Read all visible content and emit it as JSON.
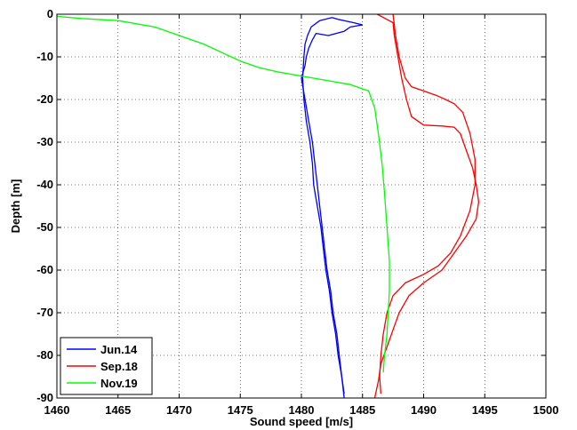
{
  "chart_data": {
    "type": "line",
    "title": "",
    "xlabel": "Sound speed [m/s]",
    "ylabel": "Depth [m]",
    "xlim": [
      1460,
      1500
    ],
    "ylim": [
      -90,
      0
    ],
    "xticks": [
      1460,
      1465,
      1470,
      1475,
      1480,
      1485,
      1490,
      1495,
      1500
    ],
    "yticks": [
      0,
      -10,
      -20,
      -30,
      -40,
      -50,
      -60,
      -70,
      -80,
      -90
    ],
    "grid": true,
    "grid_style": "dotted",
    "legend_position": "bottom-left",
    "series": [
      {
        "name": "Jun.14",
        "color": "#0000ff",
        "x": [
          1485.0,
          1484.3,
          1483.0,
          1482.5,
          1481.5,
          1480.8,
          1480.5,
          1480.3,
          1480.2,
          1480.1,
          1480.2,
          1480.4,
          1480.7,
          1480.9,
          1481.0,
          1481.3,
          1481.6,
          1481.8,
          1482.0,
          1482.3,
          1482.5,
          1482.8,
          1483.0,
          1483.3,
          1483.5
        ],
        "y": [
          -2.5,
          -2.0,
          -1.2,
          -0.8,
          -1.5,
          -3.0,
          -5.0,
          -7.0,
          -10.0,
          -15.0,
          -20.0,
          -25.0,
          -30.0,
          -35.0,
          -40.0,
          -45.0,
          -50.0,
          -55.0,
          -60.0,
          -65.0,
          -70.0,
          -75.0,
          -80.0,
          -85.0,
          -90.0
        ]
      },
      {
        "name": "Jun.14",
        "color": "#0000ff",
        "x": [
          1485.0,
          1484.0,
          1483.5,
          1482.2,
          1481.2,
          1480.9,
          1480.6,
          1480.4,
          1480.3,
          1480.0,
          1480.3,
          1480.6,
          1480.9,
          1481.1,
          1481.3,
          1481.5,
          1481.7,
          1481.9,
          1482.1,
          1482.4,
          1482.6,
          1482.9,
          1483.1,
          1483.3,
          1483.5
        ],
        "y": [
          -2.5,
          -3.0,
          -4.0,
          -5.0,
          -4.5,
          -6.0,
          -8.0,
          -10.0,
          -12.0,
          -15.0,
          -20.0,
          -25.0,
          -30.0,
          -35.0,
          -40.0,
          -45.0,
          -50.0,
          -55.0,
          -60.0,
          -65.0,
          -70.0,
          -75.0,
          -80.0,
          -85.0,
          -89.0
        ]
      },
      {
        "name": "Sep.18",
        "color": "#ff0000",
        "x": [
          1486.2,
          1487.5,
          1487.6,
          1487.9,
          1488.2,
          1488.6,
          1489.0,
          1490.0,
          1491.5,
          1492.5,
          1493.0,
          1493.5,
          1494.0,
          1494.3,
          1494.5,
          1494.3,
          1493.5,
          1492.5,
          1491.5,
          1490.0,
          1488.8,
          1488.0,
          1487.5,
          1487.0,
          1486.5,
          1486.3,
          1486.0
        ],
        "y": [
          0.0,
          -2.0,
          -5.0,
          -10.0,
          -15.0,
          -20.0,
          -24.0,
          -26.0,
          -26.2,
          -26.5,
          -28.0,
          -32.0,
          -36.0,
          -40.0,
          -44.0,
          -48.0,
          -52.0,
          -56.0,
          -60.0,
          -63.0,
          -66.0,
          -70.0,
          -74.0,
          -78.0,
          -82.0,
          -86.0,
          -90.0
        ]
      },
      {
        "name": "Sep.18",
        "color": "#ff0000",
        "x": [
          1487.5,
          1487.7,
          1488.0,
          1488.5,
          1489.0,
          1490.0,
          1491.0,
          1491.8,
          1492.5,
          1493.2,
          1493.8,
          1494.2,
          1494.2,
          1493.8,
          1493.0,
          1492.2,
          1491.2,
          1490.0,
          1488.5,
          1487.5,
          1487.0,
          1486.7,
          1486.5,
          1486.4,
          1486.5
        ],
        "y": [
          0.0,
          -5.0,
          -10.0,
          -15.0,
          -17.0,
          -18.0,
          -19.0,
          -20.0,
          -21.0,
          -23.0,
          -28.0,
          -34.0,
          -40.0,
          -46.0,
          -52.0,
          -56.0,
          -59.0,
          -61.0,
          -63.0,
          -66.0,
          -70.0,
          -75.0,
          -80.0,
          -85.0,
          -89.0
        ]
      },
      {
        "name": "Nov.19",
        "color": "#00ff00",
        "x": [
          1460.0,
          1462.0,
          1465.0,
          1468.0,
          1470.0,
          1472.0,
          1473.5,
          1475.0,
          1476.5,
          1478.0,
          1480.0,
          1482.0,
          1484.0,
          1485.5,
          1486.0,
          1486.3,
          1486.6,
          1486.8,
          1487.0,
          1487.2,
          1487.2,
          1487.1,
          1487.0,
          1486.8,
          1486.7
        ],
        "y": [
          -0.5,
          -1.0,
          -1.5,
          -3.0,
          -5.0,
          -7.0,
          -9.0,
          -11.0,
          -12.5,
          -13.5,
          -14.5,
          -15.5,
          -16.5,
          -18.0,
          -22.0,
          -28.0,
          -35.0,
          -42.0,
          -50.0,
          -58.0,
          -65.0,
          -70.0,
          -75.0,
          -80.0,
          -84.0
        ]
      }
    ],
    "legend": [
      {
        "name": "Jun.14",
        "color": "#0000ff"
      },
      {
        "name": "Sep.18",
        "color": "#ff0000"
      },
      {
        "name": "Nov.19",
        "color": "#00ff00"
      }
    ]
  }
}
